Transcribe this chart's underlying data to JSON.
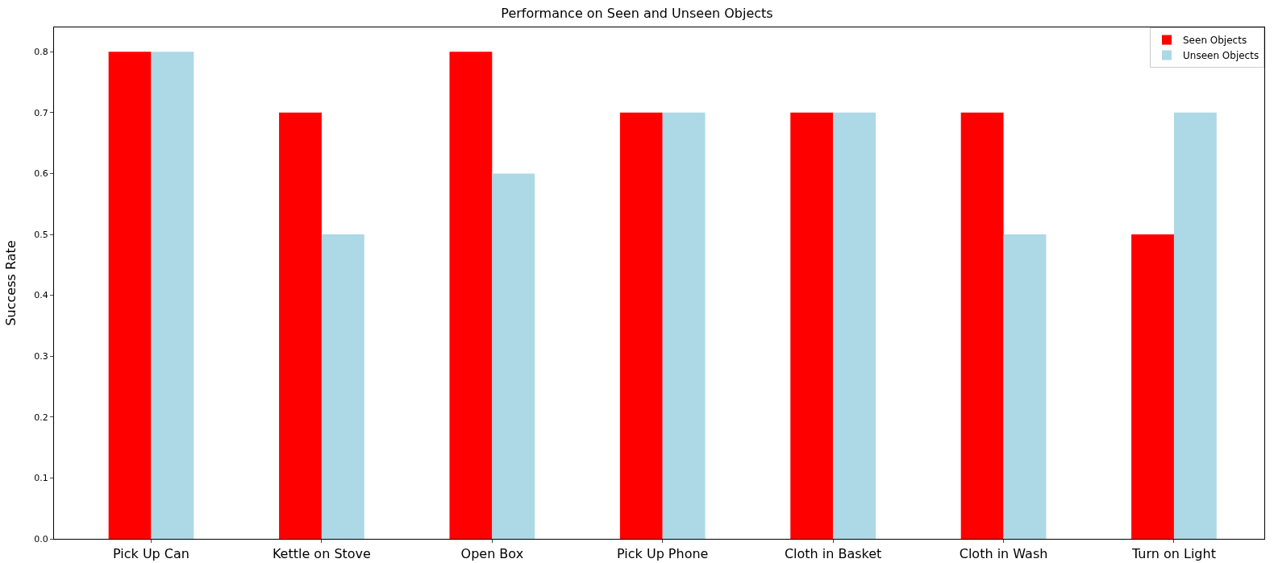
{
  "chart_data": {
    "type": "bar",
    "title": "Performance on Seen and Unseen Objects",
    "ylabel": "Success Rate",
    "categories": [
      "Pick Up Can",
      "Kettle on Stove",
      "Open Box",
      "Pick Up Phone",
      "Cloth in Basket",
      "Cloth in Wash",
      "Turn on Light"
    ],
    "series": [
      {
        "name": "Seen Objects",
        "color": "#ff0000",
        "values": [
          0.8,
          0.7,
          0.8,
          0.7,
          0.7,
          0.7,
          0.5
        ]
      },
      {
        "name": "Unseen Objects",
        "color": "#add8e6",
        "values": [
          0.8,
          0.5,
          0.6,
          0.7,
          0.7,
          0.5,
          0.7
        ]
      }
    ],
    "ylim": [
      0,
      0.84
    ],
    "yticks": [
      {
        "value": 0,
        "label": "0.0"
      },
      {
        "value": 0.1,
        "label": "0.1"
      },
      {
        "value": 0.2,
        "label": "0.2"
      },
      {
        "value": 0.3,
        "label": "0.3"
      },
      {
        "value": 0.4,
        "label": "0.4"
      },
      {
        "value": 0.5,
        "label": "0.5"
      },
      {
        "value": 0.6,
        "label": "0.6"
      },
      {
        "value": 0.7,
        "label": "0.7"
      },
      {
        "value": 0.8,
        "label": "0.8"
      }
    ],
    "grid": false,
    "legend": "top right"
  }
}
